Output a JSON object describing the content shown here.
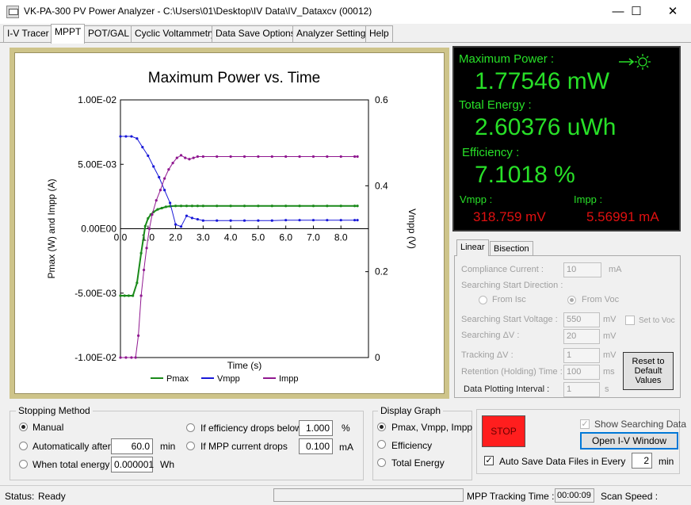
{
  "window": {
    "title": "VK-PA-300 PV Power Analyzer - C:\\Users\\01\\Desktop\\IV Data\\IV_Dataxcv (00012)",
    "minimize_glyph": "—",
    "maximize_glyph": "☐",
    "close_glyph": "✕"
  },
  "tabs": [
    "I-V Tracer",
    "MPPT",
    "POT/GAL",
    "Cyclic Voltammetry",
    "Data Save Options",
    "Analyzer Settings",
    "Help"
  ],
  "active_tab": "MPPT",
  "chart_data": {
    "type": "line",
    "title": "Maximum Power vs. Time",
    "xlabel": "Time (s)",
    "ylabel": "Pmax (W) and Impp (A)",
    "y2label": "Vmpp (V)",
    "xlim": [
      0,
      9
    ],
    "ylim": [
      -0.01,
      0.01
    ],
    "y2lim": [
      0,
      0.6
    ],
    "x_ticks": [
      "0.0",
      "1.0",
      "2.0",
      "3.0",
      "4.0",
      "5.0",
      "6.0",
      "7.0",
      "8.0"
    ],
    "y_ticks": [
      "1.00E-02",
      "5.00E-03",
      "0.00E00",
      "-5.00E-03",
      "-1.00E-02"
    ],
    "y2_ticks": [
      "0.6",
      "0.4",
      "0.2",
      "0"
    ],
    "legend_position": "bottom",
    "series": [
      {
        "name": "Pmax",
        "axis": "left",
        "color": "#1a8a1a",
        "x": [
          0,
          0.15,
          0.3,
          0.45,
          0.6,
          0.75,
          0.9,
          1.0,
          1.1,
          1.2,
          1.35,
          1.5,
          1.65,
          1.8,
          2.0,
          2.2,
          2.4,
          2.6,
          2.8,
          3.0,
          3.5,
          4.0,
          4.5,
          5.0,
          5.5,
          6.0,
          6.5,
          7.0,
          7.5,
          8.0,
          8.5,
          8.6
        ],
        "y": [
          -0.0052,
          -0.0052,
          -0.0052,
          -0.0052,
          -0.0042,
          -0.0019,
          0.0002,
          0.0008,
          0.0011,
          0.0013,
          0.0015,
          0.0016,
          0.0017,
          0.00175,
          0.00177,
          0.00177,
          0.00177,
          0.00177,
          0.00177,
          0.00177,
          0.00177,
          0.00177,
          0.00177,
          0.00177,
          0.00177,
          0.00177,
          0.00177,
          0.00177,
          0.00177,
          0.00177,
          0.00177,
          0.00177
        ]
      },
      {
        "name": "Vmpp",
        "axis": "right",
        "color": "#1818d8",
        "x": [
          0,
          0.2,
          0.4,
          0.6,
          0.8,
          1.0,
          1.2,
          1.4,
          1.6,
          1.8,
          2.0,
          2.2,
          2.4,
          2.6,
          2.8,
          3.0,
          3.5,
          4.0,
          4.5,
          5.0,
          5.5,
          6.0,
          6.5,
          7.0,
          7.5,
          8.0,
          8.5,
          8.6
        ],
        "y": [
          0.515,
          0.515,
          0.515,
          0.51,
          0.49,
          0.47,
          0.445,
          0.42,
          0.39,
          0.36,
          0.31,
          0.305,
          0.33,
          0.325,
          0.322,
          0.319,
          0.319,
          0.319,
          0.319,
          0.319,
          0.319,
          0.32,
          0.32,
          0.32,
          0.32,
          0.32,
          0.32,
          0.32
        ]
      },
      {
        "name": "Impp",
        "axis": "left",
        "color": "#901890",
        "x": [
          0,
          0.2,
          0.4,
          0.55,
          0.65,
          0.75,
          0.85,
          0.95,
          1.05,
          1.15,
          1.3,
          1.45,
          1.6,
          1.75,
          1.9,
          2.05,
          2.2,
          2.35,
          2.5,
          2.65,
          2.8,
          3.0,
          3.5,
          4.0,
          4.5,
          5.0,
          5.5,
          6.0,
          6.5,
          7.0,
          7.5,
          8.0,
          8.5,
          8.6
        ],
        "y": [
          -0.01,
          -0.01,
          -0.01,
          -0.01,
          -0.0083,
          -0.0052,
          -0.0032,
          -0.0015,
          0.0,
          0.0011,
          0.0022,
          0.003,
          0.0039,
          0.0046,
          0.0051,
          0.0055,
          0.0057,
          0.0055,
          0.0054,
          0.0055,
          0.0056,
          0.0056,
          0.0056,
          0.0056,
          0.0056,
          0.0056,
          0.0056,
          0.0056,
          0.0056,
          0.0056,
          0.0056,
          0.0056,
          0.0056,
          0.0056
        ]
      }
    ]
  },
  "power_panel": {
    "max_power_label": "Maximum Power :",
    "max_power_value": "1.77546 mW",
    "total_energy_label": "Total Energy :",
    "total_energy_value": "2.60376 uWh",
    "efficiency_label": "Efficiency :",
    "efficiency_value": "7.1018 %",
    "vmpp_label": "Vmpp :",
    "vmpp_value": "318.759 mV",
    "impp_label": "Impp :",
    "impp_value": "5.56991 mA",
    "sun_icon_color": "#28e028"
  },
  "settings_tabs": [
    "Linear",
    "Bisection"
  ],
  "settings": {
    "compliance_label": "Compliance Current :",
    "compliance_value": "10",
    "compliance_unit": "mA",
    "search_dir_label": "Searching Start Direction :",
    "from_isc": "From Isc",
    "from_voc": "From Voc",
    "start_voltage_label": "Searching Start Voltage :",
    "start_voltage_value": "550",
    "start_voltage_unit": "mV",
    "set_to_voc": "Set to Voc",
    "delta_v_label": "Searching ΔV :",
    "delta_v_value": "20",
    "delta_v_unit": "mV",
    "tracking_label": "Tracking ΔV :",
    "tracking_value": "1",
    "tracking_unit": "mV",
    "retention_label": "Retention (Holding) Time :",
    "retention_value": "100",
    "retention_unit": "ms",
    "plot_interval_label": "Data Plotting Interval :",
    "plot_interval_value": "1",
    "plot_interval_unit": "s",
    "reset_button": "Reset to Default Values"
  },
  "stopping": {
    "title": "Stopping Method",
    "manual": "Manual",
    "auto_after": "Automatically after",
    "auto_after_value": "60.0",
    "auto_after_unit": "min",
    "total_energy": "When total energy",
    "total_energy_value": "0.000001",
    "total_energy_unit": "Wh",
    "eff_drops": "If efficiency drops below",
    "eff_drops_value": "1.000",
    "eff_drops_unit": "%",
    "mpp_drops": "If MPP current drops",
    "mpp_drops_value": "0.100",
    "mpp_drops_unit": "mA"
  },
  "display_graph": {
    "title": "Display Graph",
    "opt1": "Pmax, Vmpp, Impp",
    "opt2": "Efficiency",
    "opt3": "Total Energy"
  },
  "controls": {
    "stop_button": "STOP",
    "show_search": "Show Searching Data",
    "open_iv": "Open I-V Window",
    "auto_save": "Auto Save Data Files in Every",
    "auto_save_value": "2",
    "auto_save_unit": "min"
  },
  "status": {
    "label": "Status:",
    "value": "Ready",
    "tracking_time_label": "MPP Tracking Time :",
    "tracking_time_value": "00:00:09",
    "scan_speed_label": "Scan Speed :"
  }
}
